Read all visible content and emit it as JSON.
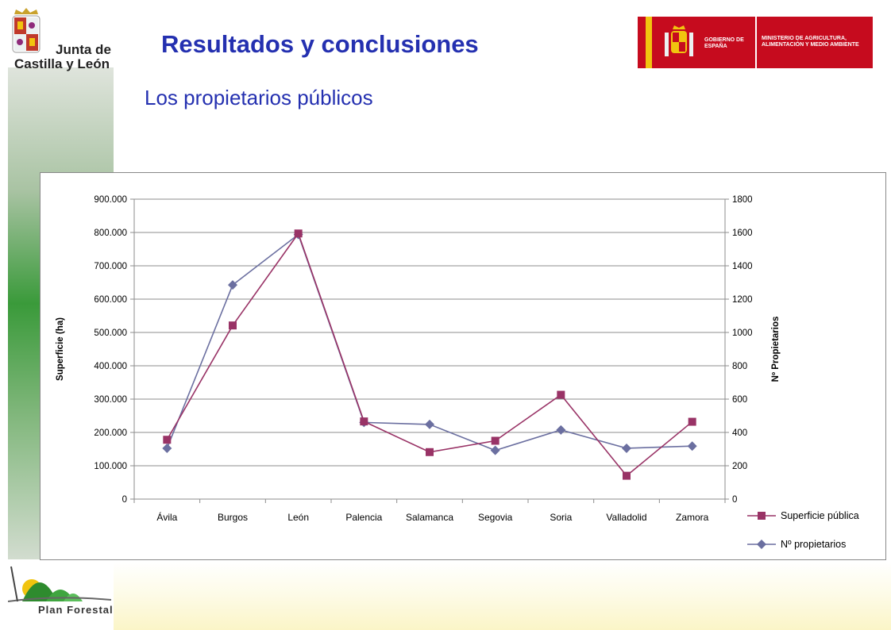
{
  "header": {
    "title": "Resultados y conclusiones",
    "subtitle": "Los propietarios públicos"
  },
  "logos": {
    "jcyl_line1": "Junta de",
    "jcyl_line2": "Castilla y León",
    "gov_left": "GOBIERNO DE ESPAÑA",
    "gov_right": "MINISTERIO DE AGRICULTURA, ALIMENTACIÓN Y MEDIO AMBIENTE",
    "plan": "Plan Forestal"
  },
  "colors": {
    "title": "#2430b0",
    "series_superficie": "#993366",
    "series_propietarios": "#6b6fa0"
  },
  "chart_data": {
    "type": "line",
    "categories": [
      "Ávila",
      "Burgos",
      "León",
      "Palencia",
      "Salamanca",
      "Segovia",
      "Soria",
      "Valladolid",
      "Zamora"
    ],
    "ylabel": "Superficie (ha)",
    "y2label": "Nº Propietarios",
    "ylim": [
      0,
      900000
    ],
    "y2lim": [
      0,
      1800
    ],
    "yticks": [
      "0",
      "100.000",
      "200.000",
      "300.000",
      "400.000",
      "500.000",
      "600.000",
      "700.000",
      "800.000",
      "900.000"
    ],
    "y2ticks": [
      "0",
      "200",
      "400",
      "600",
      "800",
      "1000",
      "1200",
      "1400",
      "1600",
      "1800"
    ],
    "grid": true,
    "legend_position": "bottom-right",
    "series": [
      {
        "name": "Superficie pública",
        "axis": "left",
        "marker": "square",
        "values": [
          178000,
          521000,
          797000,
          233000,
          141000,
          175000,
          313000,
          70000,
          232000
        ]
      },
      {
        "name": "Nº propietarios",
        "axis": "right",
        "marker": "diamond",
        "values": [
          305,
          1285,
          1588,
          460,
          448,
          292,
          415,
          305,
          318
        ]
      }
    ]
  }
}
